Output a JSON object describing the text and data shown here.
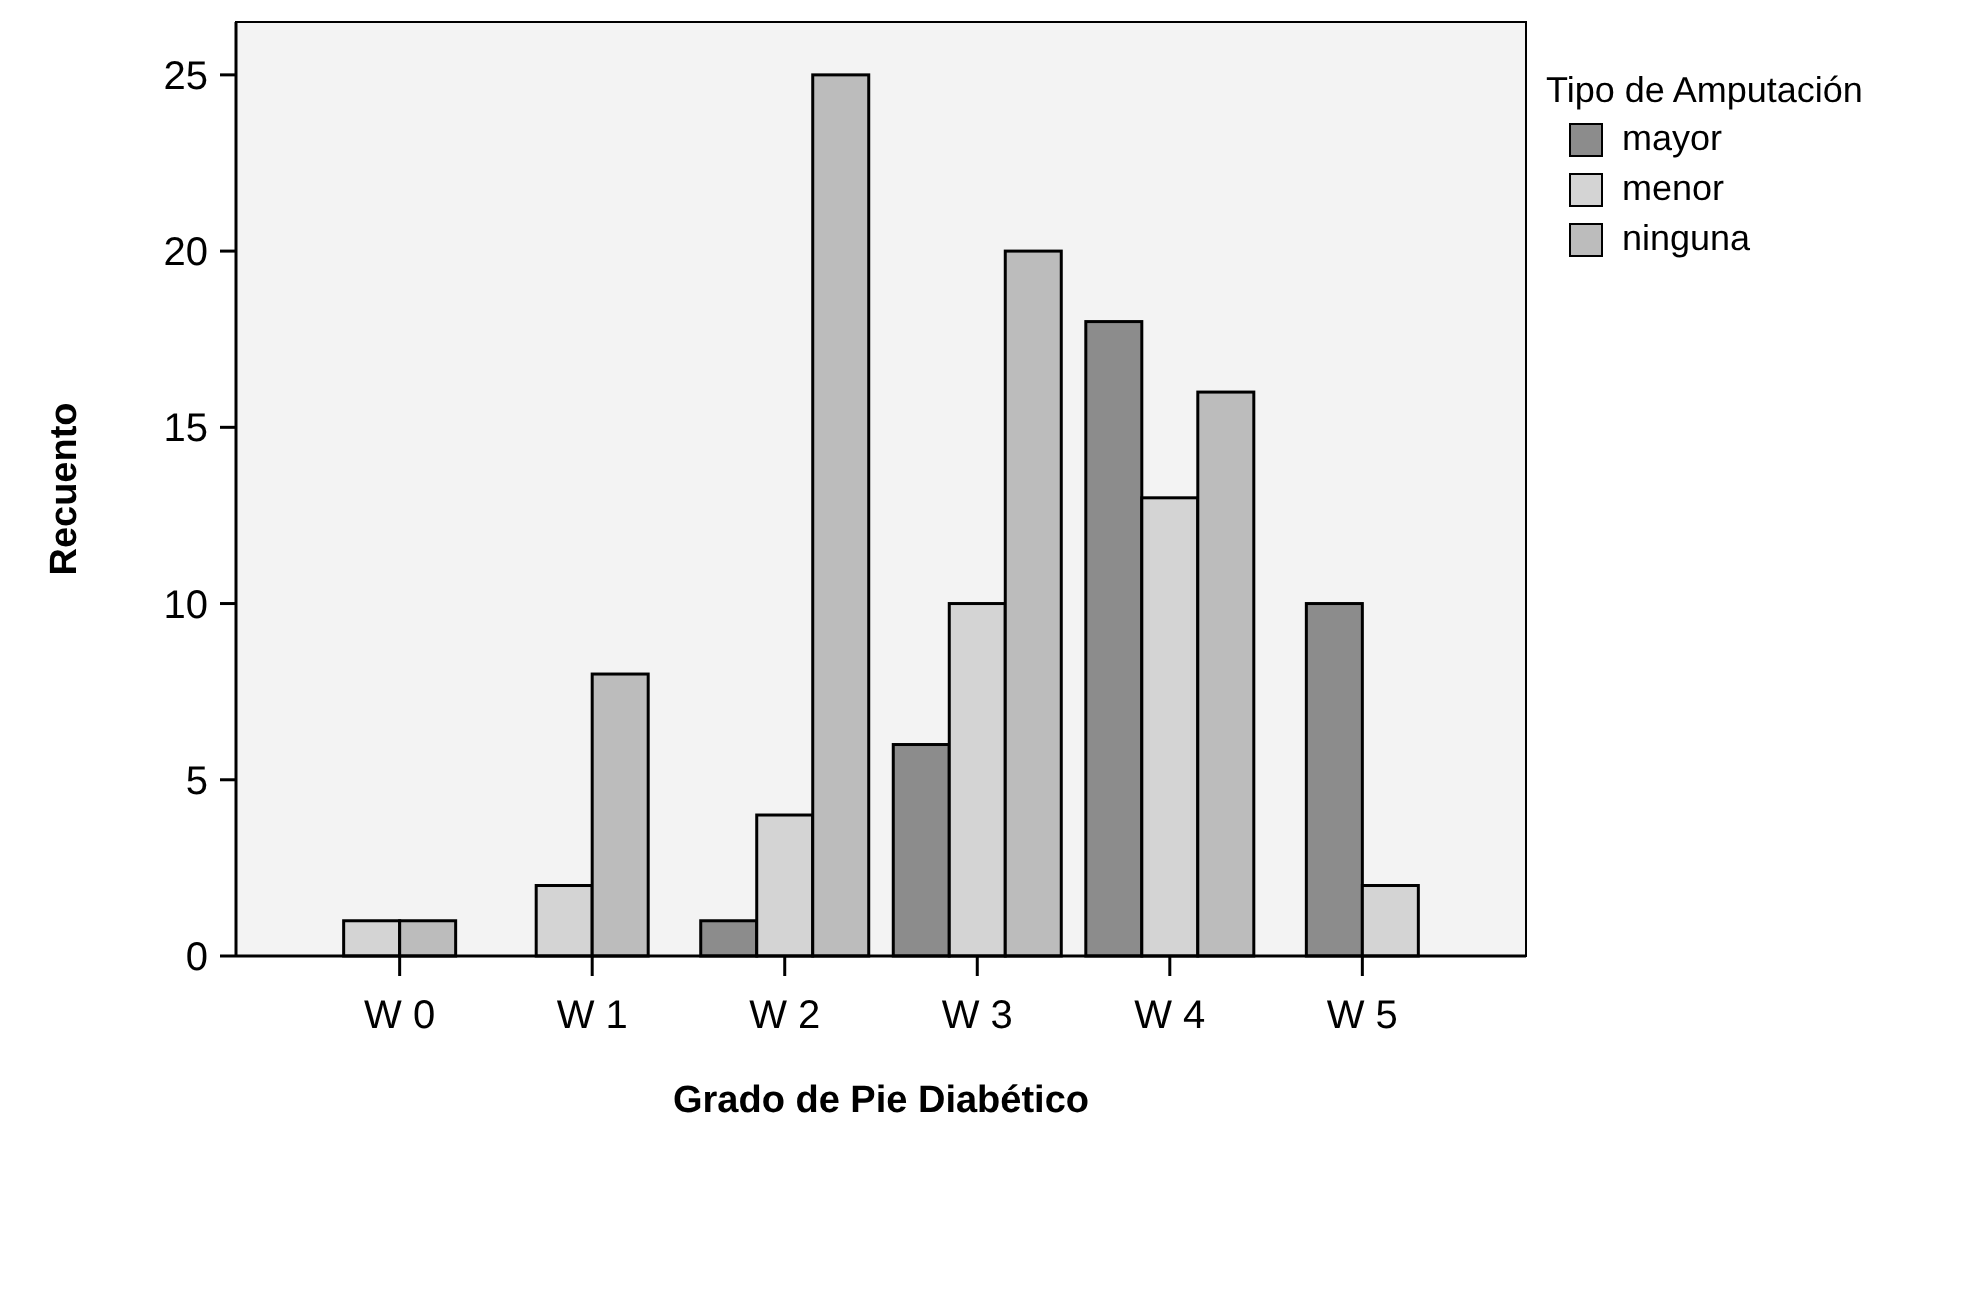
{
  "chart_data": {
    "type": "bar",
    "xlabel": "Grado de Pie Diabético",
    "ylabel": "Recuento",
    "legend_title": "Tipo de Amputación",
    "legend": "top right",
    "categories": [
      "W 0",
      "W 1",
      "W 2",
      "W 3",
      "W 4",
      "W 5"
    ],
    "series": [
      {
        "name": "mayor",
        "color": "#8c8c8c",
        "values": [
          null,
          null,
          1,
          6,
          18,
          10
        ]
      },
      {
        "name": "menor",
        "color": "#d4d4d4",
        "values": [
          1,
          2,
          4,
          10,
          13,
          2
        ]
      },
      {
        "name": "ninguna",
        "color": "#bcbcbc",
        "values": [
          1,
          8,
          25,
          20,
          16,
          null
        ]
      }
    ],
    "ylim": [
      0,
      26.5
    ],
    "yticks": [
      0,
      5,
      10,
      15,
      20,
      25
    ],
    "grid": false
  }
}
